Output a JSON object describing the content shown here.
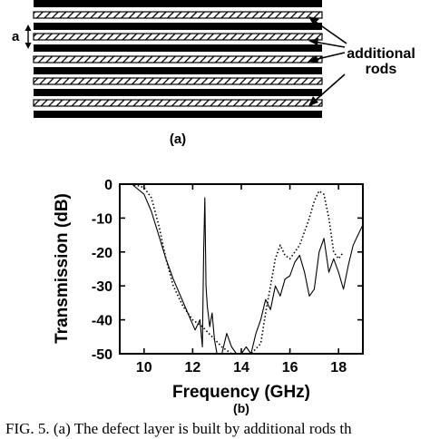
{
  "panel_a": {
    "spacing_label": "a",
    "annotation": [
      "additional",
      "rods"
    ],
    "panel_label": "(a)"
  },
  "panel_b": {
    "panel_label": "(b)"
  },
  "caption": "FIG. 5. (a) The defect layer is built by additional rods th",
  "colors": {
    "ink": "#000000",
    "paper": "#ffffff"
  },
  "chart_data": {
    "type": "line",
    "title": "",
    "xlabel": "Frequency (GHz)",
    "ylabel": "Transmission (dB)",
    "xlim": [
      9,
      19
    ],
    "ylim": [
      -50,
      0
    ],
    "xticks": [
      10,
      12,
      14,
      16,
      18
    ],
    "yticks": [
      0,
      -10,
      -20,
      -30,
      -40,
      -50
    ],
    "grid": false,
    "series": [
      {
        "style": "solid",
        "x": [
          9.0,
          9.5,
          10.0,
          10.3,
          10.6,
          10.9,
          11.2,
          11.5,
          11.8,
          12.1,
          12.3,
          12.4,
          12.45,
          12.5,
          12.55,
          12.6,
          12.7,
          12.8,
          12.9,
          13.0,
          13.2,
          13.4,
          13.6,
          13.8,
          14.0,
          14.2,
          14.4,
          14.6,
          14.8,
          15.0,
          15.2,
          15.4,
          15.6,
          15.8,
          16.0,
          16.2,
          16.4,
          16.6,
          16.8,
          17.0,
          17.2,
          17.4,
          17.6,
          17.8,
          18.0,
          18.2,
          18.4,
          18.6,
          18.8,
          19.0
        ],
        "y": [
          0,
          0,
          -3,
          -8,
          -15,
          -22,
          -28,
          -33,
          -38,
          -43,
          -40,
          -48,
          -20,
          -4,
          -30,
          -36,
          -42,
          -38,
          -46,
          -50,
          -50,
          -44,
          -48,
          -50,
          -50,
          -48,
          -50,
          -44,
          -40,
          -34,
          -37,
          -30,
          -33,
          -28,
          -27,
          -23,
          -21,
          -26,
          -33,
          -31,
          -20,
          -16,
          -26,
          -22,
          -26,
          -31,
          -24,
          -18,
          -15,
          -12
        ]
      },
      {
        "style": "dotted",
        "x": [
          9.0,
          9.5,
          10.0,
          10.3,
          10.6,
          10.9,
          11.2,
          11.6,
          12.0,
          12.4,
          12.8,
          13.2,
          13.6,
          14.0,
          14.4,
          14.8,
          15.0,
          15.2,
          15.4,
          15.6,
          15.8,
          16.0,
          16.2,
          16.4,
          16.6,
          16.8,
          17.0,
          17.2,
          17.4,
          17.6,
          17.8,
          18.0,
          18.2
        ],
        "y": [
          0,
          0,
          -1,
          -4,
          -12,
          -22,
          -30,
          -36,
          -40,
          -42,
          -45,
          -48,
          -50,
          -50,
          -50,
          -47,
          -38,
          -30,
          -22,
          -18,
          -21,
          -22,
          -20,
          -18,
          -14,
          -10,
          -5,
          -2,
          -3,
          -10,
          -20,
          -22,
          -20
        ]
      }
    ]
  }
}
